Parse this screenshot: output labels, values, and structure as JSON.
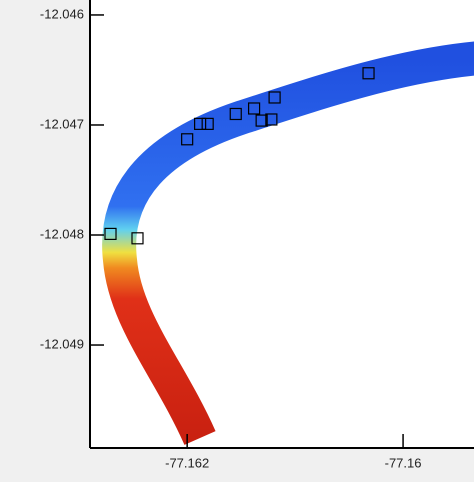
{
  "chart_data": {
    "type": "scatter",
    "x": [
      -77.16032,
      -77.16119,
      -77.16138,
      -77.16155,
      -77.16122,
      -77.16131,
      -77.16181,
      -77.16188,
      -77.162,
      -77.16271,
      -77.16246
    ],
    "y": [
      -12.04653,
      -12.04675,
      -12.04685,
      -12.0469,
      -12.04695,
      -12.04696,
      -12.04699,
      -12.04699,
      -12.04713,
      -12.04799,
      -12.04803
    ],
    "marker_color": "#000000",
    "xlim": [
      -77.1629,
      -77.159343
    ],
    "ylim": [
      -12.049936,
      -12.045864
    ],
    "xticks": [
      -77.162,
      -77.16
    ],
    "yticks": [
      -12.046,
      -12.047,
      -12.048,
      -12.049
    ]
  }
}
